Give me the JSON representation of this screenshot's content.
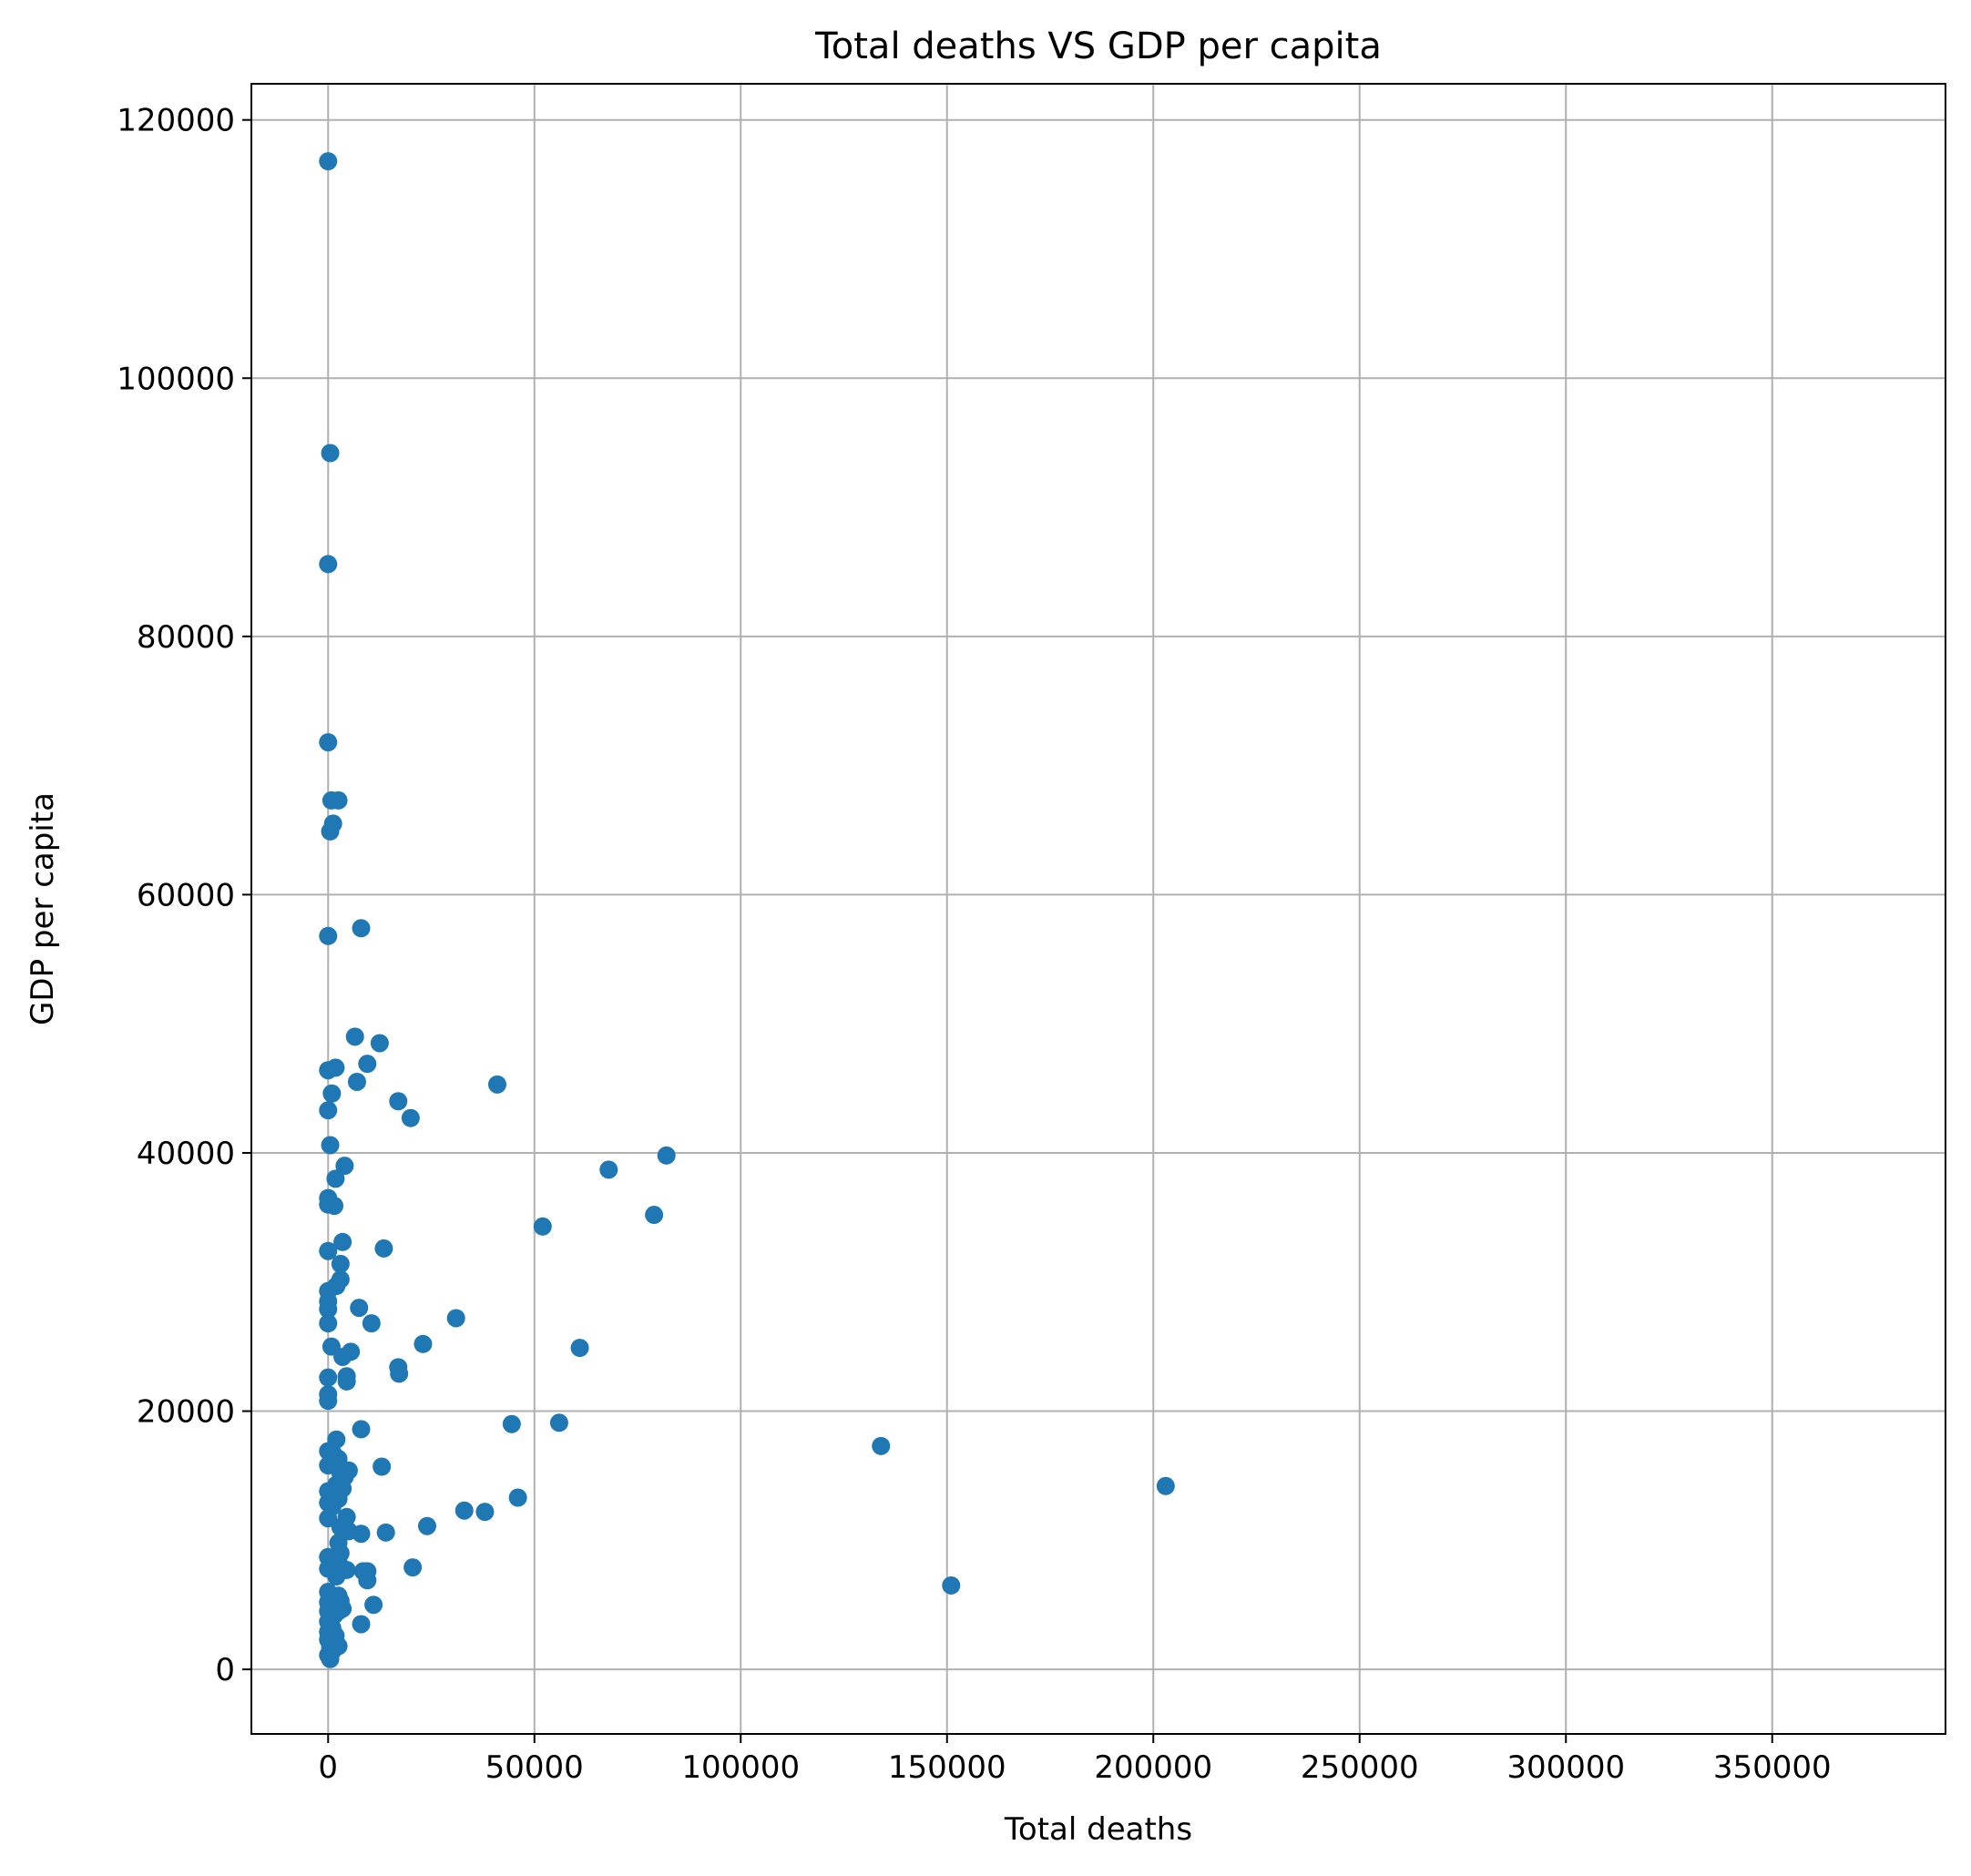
{
  "chart_data": {
    "type": "scatter",
    "title": "Total deaths VS GDP per capita",
    "xlabel": "Total deaths",
    "ylabel": "GDP per capita",
    "xlim": [
      -18600,
      392000
    ],
    "ylim": [
      -5000,
      122800
    ],
    "xticks": [
      0,
      50000,
      100000,
      150000,
      200000,
      250000,
      300000,
      350000
    ],
    "yticks": [
      0,
      20000,
      40000,
      60000,
      80000,
      100000,
      120000
    ],
    "grid": true,
    "marker_color": "#1f77b4",
    "series": [
      {
        "points": [
          [
            0,
            116800
          ],
          [
            500,
            94200
          ],
          [
            0,
            85600
          ],
          [
            0,
            71800
          ],
          [
            800,
            67300
          ],
          [
            2500,
            67300
          ],
          [
            1200,
            65500
          ],
          [
            500,
            64900
          ],
          [
            0,
            56800
          ],
          [
            8000,
            57400
          ],
          [
            6500,
            49000
          ],
          [
            12500,
            48500
          ],
          [
            1800,
            46600
          ],
          [
            0,
            46400
          ],
          [
            9500,
            46900
          ],
          [
            7000,
            45500
          ],
          [
            41000,
            45300
          ],
          [
            900,
            44600
          ],
          [
            17000,
            44000
          ],
          [
            0,
            43300
          ],
          [
            20000,
            42700
          ],
          [
            500,
            40600
          ],
          [
            82000,
            39800
          ],
          [
            68000,
            38700
          ],
          [
            4000,
            39000
          ],
          [
            1800,
            38000
          ],
          [
            0,
            36500
          ],
          [
            0,
            36000
          ],
          [
            1500,
            35900
          ],
          [
            79000,
            35200
          ],
          [
            52000,
            34300
          ],
          [
            3500,
            33100
          ],
          [
            13500,
            32600
          ],
          [
            0,
            32400
          ],
          [
            3000,
            31400
          ],
          [
            3000,
            30200
          ],
          [
            2000,
            29700
          ],
          [
            0,
            29300
          ],
          [
            0,
            28500
          ],
          [
            0,
            27900
          ],
          [
            7500,
            28000
          ],
          [
            31000,
            27200
          ],
          [
            10500,
            26800
          ],
          [
            0,
            26800
          ],
          [
            23000,
            25200
          ],
          [
            61000,
            24900
          ],
          [
            800,
            25000
          ],
          [
            5500,
            24600
          ],
          [
            3500,
            24200
          ],
          [
            17000,
            23400
          ],
          [
            17200,
            22900
          ],
          [
            4500,
            22700
          ],
          [
            0,
            22600
          ],
          [
            4500,
            22300
          ],
          [
            0,
            21300
          ],
          [
            0,
            20800
          ],
          [
            44500,
            19000
          ],
          [
            56000,
            19100
          ],
          [
            8000,
            18600
          ],
          [
            2000,
            17800
          ],
          [
            134000,
            17300
          ],
          [
            1200,
            16700
          ],
          [
            0,
            16900
          ],
          [
            2500,
            16300
          ],
          [
            0,
            15800
          ],
          [
            13000,
            15700
          ],
          [
            5000,
            15400
          ],
          [
            3000,
            15200
          ],
          [
            4000,
            14900
          ],
          [
            2000,
            14300
          ],
          [
            203000,
            14200
          ],
          [
            3500,
            14000
          ],
          [
            0,
            13800
          ],
          [
            2500,
            13200
          ],
          [
            46000,
            13300
          ],
          [
            0,
            12900
          ],
          [
            1000,
            12600
          ],
          [
            33000,
            12300
          ],
          [
            38000,
            12200
          ],
          [
            0,
            11700
          ],
          [
            4500,
            11800
          ],
          [
            24000,
            11100
          ],
          [
            3000,
            11000
          ],
          [
            5000,
            10700
          ],
          [
            14000,
            10600
          ],
          [
            8000,
            10500
          ],
          [
            2500,
            9800
          ],
          [
            0,
            8700
          ],
          [
            3000,
            9000
          ],
          [
            2500,
            8300
          ],
          [
            1500,
            8000
          ],
          [
            20500,
            7900
          ],
          [
            0,
            7800
          ],
          [
            4500,
            7700
          ],
          [
            8500,
            7600
          ],
          [
            9500,
            7600
          ],
          [
            2000,
            7200
          ],
          [
            9500,
            6900
          ],
          [
            151000,
            6500
          ],
          [
            0,
            6000
          ],
          [
            2500,
            5700
          ],
          [
            3000,
            5300
          ],
          [
            0,
            5200
          ],
          [
            11000,
            5000
          ],
          [
            3500,
            4700
          ],
          [
            0,
            4500
          ],
          [
            1500,
            4200
          ],
          [
            2500,
            4500
          ],
          [
            0,
            3700
          ],
          [
            8000,
            3500
          ],
          [
            1000,
            3200
          ],
          [
            0,
            2900
          ],
          [
            1800,
            2600
          ],
          [
            0,
            2300
          ],
          [
            2000,
            2000
          ],
          [
            500,
            1700
          ],
          [
            1000,
            1400
          ],
          [
            2500,
            1800
          ],
          [
            0,
            1100
          ],
          [
            500,
            800
          ]
        ]
      }
    ]
  }
}
